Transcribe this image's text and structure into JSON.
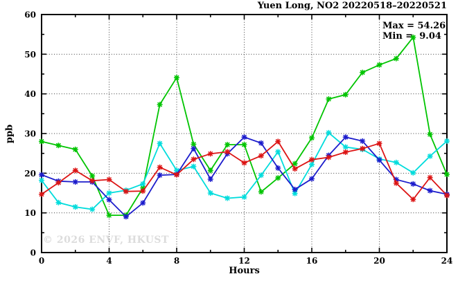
{
  "chart_data": {
    "type": "line",
    "title": "Yuen Long, NO2 20220518–20220521",
    "annotations": {
      "max": "Max = 54.26",
      "min": "Min =  9.04"
    },
    "xlabel": "Hours",
    "ylabel": "ppb",
    "watermark": "© 2026 ENVF, HKUST",
    "xlim": [
      0,
      24
    ],
    "ylim": [
      0,
      60
    ],
    "x_major_ticks": [
      0,
      4,
      8,
      12,
      16,
      20,
      24
    ],
    "x_minor_ticks": [
      2,
      6,
      10,
      14,
      18,
      22
    ],
    "y_major_ticks": [
      0,
      10,
      20,
      30,
      40,
      50,
      60
    ],
    "y_minor_ticks": [
      5,
      15,
      25,
      35,
      45,
      55
    ],
    "grid": "dotted lines at major ticks, mirrored inward ticks on all borders",
    "legend_position": "none (stats annotation top-right inside plot)",
    "x": [
      0,
      1,
      2,
      3,
      4,
      5,
      6,
      7,
      8,
      9,
      10,
      11,
      12,
      13,
      14,
      15,
      16,
      17,
      18,
      19,
      20,
      21,
      22,
      23,
      24
    ],
    "series": [
      {
        "name": "green",
        "color": "#00c400",
        "values": [
          28.0,
          27.0,
          26.0,
          19.3,
          9.4,
          9.4,
          16.3,
          37.3,
          44.1,
          27.3,
          20.7,
          27.2,
          27.2,
          15.3,
          18.8,
          22.4,
          28.9,
          38.7,
          39.8,
          45.4,
          47.3,
          48.9,
          54.26,
          29.8,
          19.7
        ]
      },
      {
        "name": "cyan",
        "color": "#00dcdc",
        "values": [
          18.2,
          12.6,
          11.5,
          10.9,
          15.0,
          15.7,
          17.3,
          27.5,
          20.7,
          21.7,
          15.0,
          13.7,
          14.0,
          19.5,
          25.4,
          14.9,
          22.2,
          30.2,
          26.6,
          26.0,
          23.6,
          22.7,
          20.1,
          24.3,
          28.1
        ]
      },
      {
        "name": "blue",
        "color": "#1c1ccc",
        "values": [
          19.6,
          18.0,
          17.8,
          17.8,
          13.3,
          9.04,
          12.5,
          19.5,
          19.7,
          26.2,
          18.5,
          24.9,
          29.1,
          27.6,
          21.3,
          15.9,
          18.6,
          24.5,
          29.1,
          28.1,
          23.3,
          18.4,
          17.3,
          15.6,
          14.7
        ]
      },
      {
        "name": "red",
        "color": "#dc1414",
        "values": [
          14.7,
          17.6,
          20.7,
          18.1,
          18.4,
          15.4,
          15.5,
          21.5,
          19.6,
          23.5,
          24.9,
          25.4,
          22.6,
          24.4,
          28.0,
          21.1,
          23.4,
          24.0,
          25.3,
          26.2,
          27.5,
          17.5,
          13.4,
          18.9,
          14.4
        ]
      }
    ]
  }
}
